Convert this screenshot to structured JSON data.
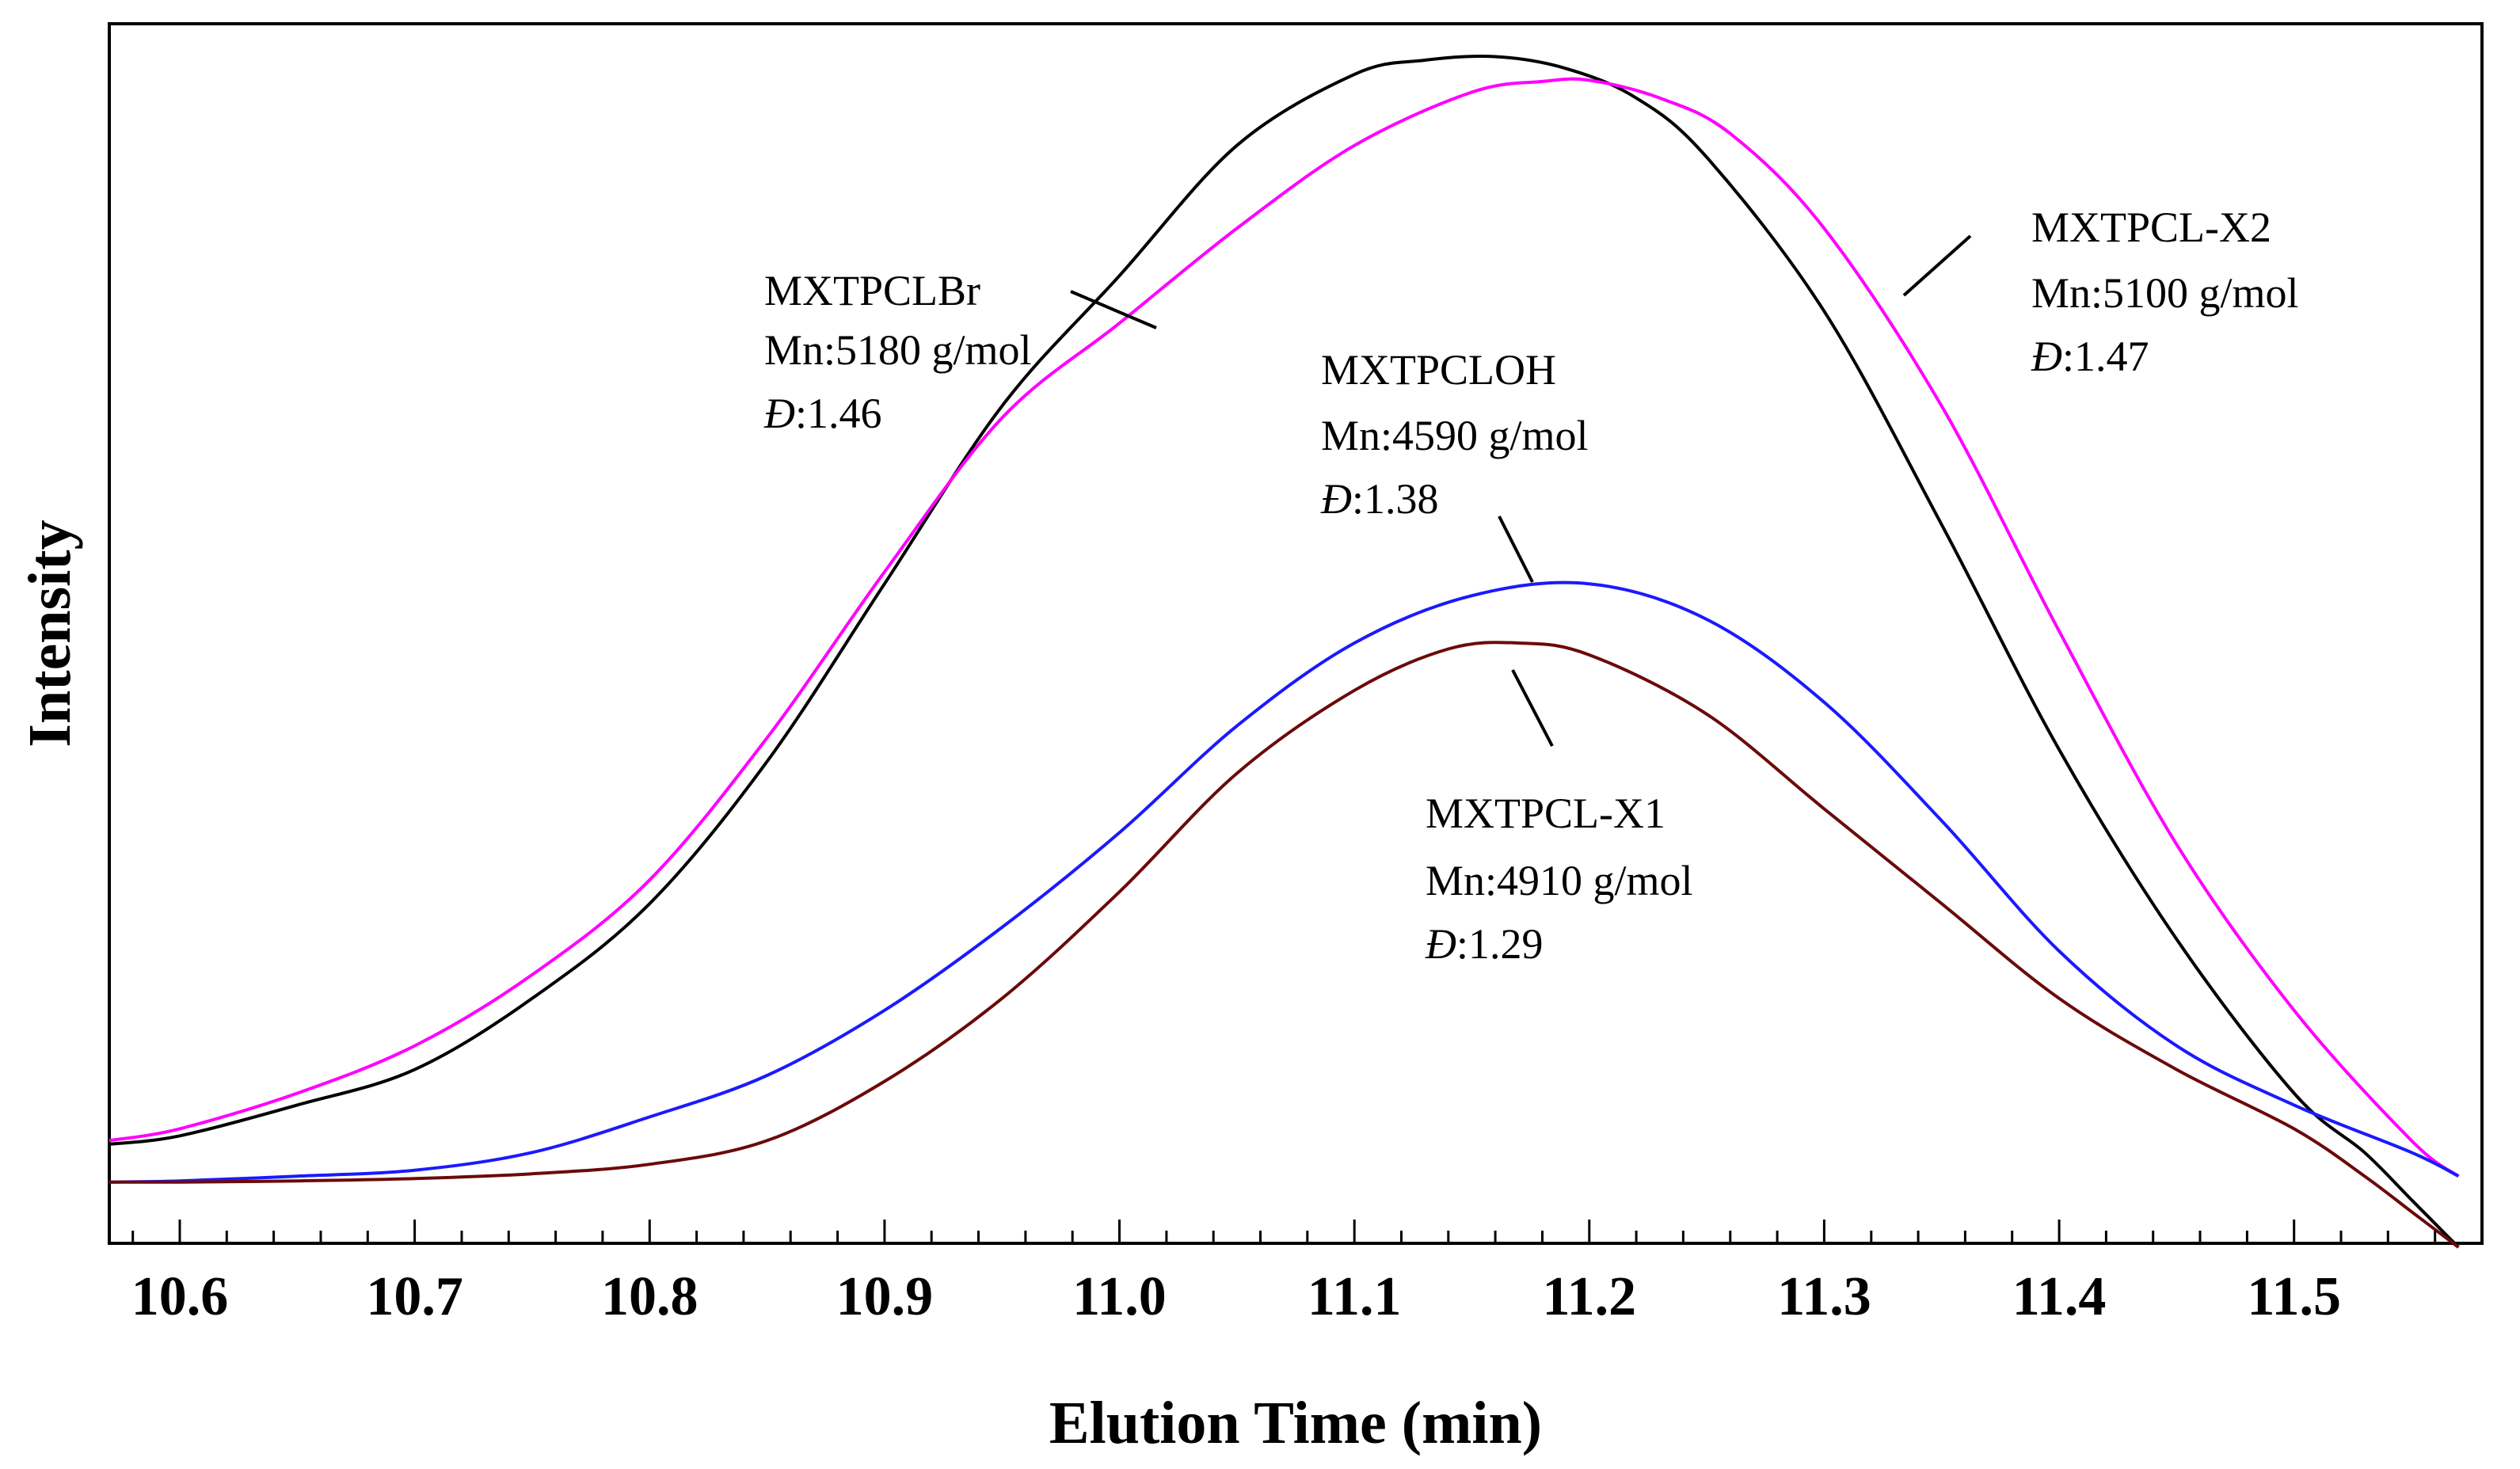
{
  "chart_data": {
    "type": "line",
    "title": "",
    "xlabel": "Elution Time (min)",
    "ylabel": "Intensity",
    "xlim": [
      10.57,
      11.58
    ],
    "ylim": [
      0.0,
      1.0
    ],
    "grid": false,
    "x_ticks": [
      10.6,
      10.7,
      10.8,
      10.9,
      11.0,
      11.1,
      11.2,
      11.3,
      11.4,
      11.5
    ],
    "x_tick_labels": [
      "10.6",
      "10.7",
      "10.8",
      "10.9",
      "11.0",
      "11.1",
      "11.2",
      "11.3",
      "11.4",
      "11.5"
    ],
    "series": [
      {
        "name": "MXTPCLBr",
        "color": "#000000",
        "x": [
          10.57,
          10.6,
          10.65,
          10.7,
          10.75,
          10.8,
          10.85,
          10.9,
          10.95,
          11.0,
          11.05,
          11.1,
          11.13,
          11.16,
          11.19,
          11.22,
          11.25,
          11.3,
          11.35,
          11.4,
          11.45,
          11.5,
          11.53,
          11.55,
          11.57
        ],
        "y": [
          0.077,
          0.084,
          0.11,
          0.14,
          0.2,
          0.28,
          0.4,
          0.55,
          0.7,
          0.81,
          0.92,
          0.98,
          0.992,
          0.995,
          0.985,
          0.96,
          0.91,
          0.78,
          0.6,
          0.41,
          0.25,
          0.12,
          0.07,
          0.03,
          -0.01
        ]
      },
      {
        "name": "MXTPCL-X2",
        "color": "#ff00ff",
        "x": [
          10.57,
          10.6,
          10.65,
          10.7,
          10.75,
          10.8,
          10.85,
          10.9,
          10.95,
          11.0,
          11.05,
          11.1,
          11.15,
          11.18,
          11.2,
          11.23,
          11.26,
          11.3,
          11.35,
          11.4,
          11.45,
          11.5,
          11.55,
          11.57
        ],
        "y": [
          0.08,
          0.09,
          0.12,
          0.16,
          0.22,
          0.3,
          0.42,
          0.56,
          0.69,
          0.77,
          0.85,
          0.92,
          0.965,
          0.974,
          0.975,
          0.96,
          0.93,
          0.85,
          0.7,
          0.51,
          0.33,
          0.19,
          0.08,
          0.05
        ]
      },
      {
        "name": "MXTPCLOH",
        "color": "#1a1aff",
        "x": [
          10.57,
          10.6,
          10.65,
          10.7,
          10.75,
          10.8,
          10.85,
          10.9,
          10.95,
          11.0,
          11.05,
          11.1,
          11.15,
          11.2,
          11.25,
          11.3,
          11.35,
          11.4,
          11.45,
          11.5,
          11.55,
          11.57
        ],
        "y": [
          0.045,
          0.046,
          0.05,
          0.055,
          0.07,
          0.1,
          0.135,
          0.19,
          0.26,
          0.34,
          0.43,
          0.5,
          0.54,
          0.55,
          0.52,
          0.45,
          0.35,
          0.24,
          0.16,
          0.11,
          0.07,
          0.05
        ]
      },
      {
        "name": "MXTPCL-X1",
        "color": "#6b0a0a",
        "x": [
          10.57,
          10.6,
          10.65,
          10.7,
          10.75,
          10.8,
          10.85,
          10.9,
          10.95,
          11.0,
          11.05,
          11.1,
          11.14,
          11.17,
          11.2,
          11.25,
          11.3,
          11.35,
          11.4,
          11.45,
          11.5,
          11.53,
          11.55,
          11.57
        ],
        "y": [
          0.045,
          0.045,
          0.046,
          0.048,
          0.052,
          0.06,
          0.08,
          0.13,
          0.2,
          0.29,
          0.39,
          0.46,
          0.495,
          0.5,
          0.49,
          0.44,
          0.36,
          0.28,
          0.2,
          0.14,
          0.09,
          0.05,
          0.02,
          -0.01
        ]
      }
    ],
    "annotations": [
      {
        "series": "MXTPCLBr",
        "name": "MXTPCLBr",
        "mn": "Mn:5180 g/mol",
        "pdi_symbol": "Đ",
        "pdi_value": ":1.46"
      },
      {
        "series": "MXTPCLOH",
        "name": "MXTPCLOH",
        "mn": "Mn:4590 g/mol",
        "pdi_symbol": "Đ",
        "pdi_value": ":1.38"
      },
      {
        "series": "MXTPCL-X2",
        "name": "MXTPCL-X2",
        "mn": "Mn:5100 g/mol",
        "pdi_symbol": "Đ",
        "pdi_value": ":1.47"
      },
      {
        "series": "MXTPCL-X1",
        "name": "MXTPCL-X1",
        "mn": "Mn:4910 g/mol",
        "pdi_symbol": "Đ",
        "pdi_value": ":1.29"
      }
    ]
  }
}
